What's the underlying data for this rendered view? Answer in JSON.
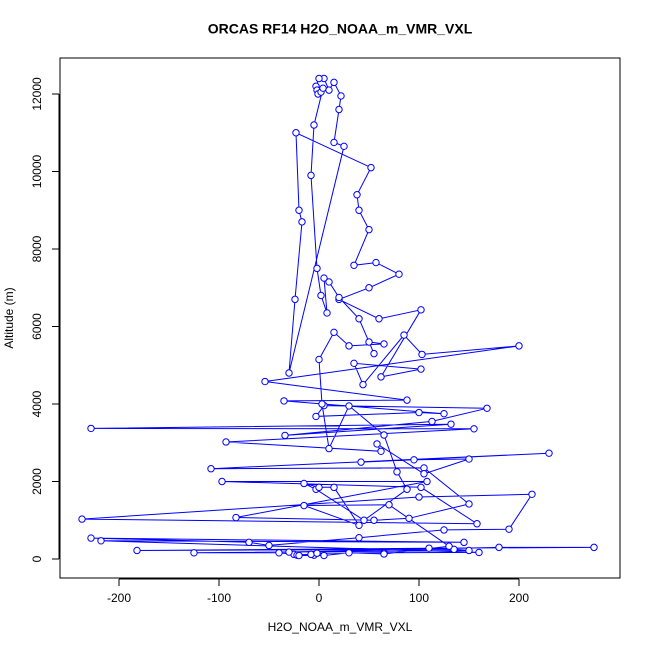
{
  "chart_data": {
    "type": "line",
    "title": "ORCAS RF14 H2O_NOAA_m_VMR_VXL",
    "x_label": "H2O_NOAA_m_VMR_VXL",
    "y_label": "Altitude (m)",
    "color": "#0000ff",
    "markers": true,
    "x": [
      -5,
      -25,
      -40,
      -125,
      150,
      135,
      -182,
      110,
      275,
      180,
      -30,
      -22,
      -8,
      -2,
      65,
      160,
      -218,
      145,
      -228,
      -70,
      -50,
      40,
      125,
      190,
      213,
      100,
      -237,
      158,
      102,
      -97,
      108,
      -83,
      55,
      90,
      150,
      105,
      -108,
      230,
      42,
      95,
      150,
      105,
      58,
      62,
      -93,
      155,
      -228,
      132,
      -34,
      113,
      168,
      5,
      -3,
      100,
      125,
      -35,
      88,
      -54,
      200,
      103,
      85,
      44,
      35,
      102,
      62,
      102,
      60,
      20,
      50,
      80,
      57,
      35,
      50,
      40,
      38,
      52,
      -23,
      -20,
      -17,
      -24,
      -30,
      25,
      15,
      20,
      22,
      15,
      10,
      5,
      0,
      -3,
      -2,
      -1,
      2,
      4,
      -5,
      -8,
      -2,
      2,
      8,
      5,
      10,
      20,
      40,
      55,
      50,
      65,
      30,
      15,
      0,
      3,
      10,
      30,
      65,
      78,
      88,
      45,
      -3,
      -15,
      0,
      15,
      40,
      -15,
      70,
      130,
      65,
      30,
      5,
      -20
    ],
    "values": [
      100,
      120,
      160,
      160,
      220,
      250,
      220,
      280,
      300,
      300,
      180,
      100,
      120,
      150,
      160,
      170,
      470,
      430,
      540,
      430,
      350,
      550,
      750,
      770,
      1670,
      1600,
      1030,
      910,
      1850,
      2000,
      2000,
      1070,
      1000,
      1050,
      1420,
      2350,
      2330,
      2730,
      2500,
      2560,
      2580,
      2200,
      2970,
      2780,
      3020,
      3360,
      3370,
      3480,
      3190,
      3550,
      3890,
      3960,
      3680,
      3780,
      3750,
      4080,
      4100,
      4580,
      5500,
      5280,
      5780,
      4500,
      5050,
      4900,
      4700,
      6430,
      6200,
      6700,
      7000,
      7350,
      7650,
      7580,
      8500,
      9000,
      9400,
      10100,
      11000,
      9000,
      8700,
      6700,
      4800,
      10650,
      10750,
      11600,
      11950,
      12300,
      12100,
      12400,
      12400,
      12200,
      12100,
      12000,
      12050,
      12150,
      11200,
      9900,
      7500,
      6800,
      6350,
      7250,
      7150,
      6750,
      6200,
      5300,
      5600,
      5550,
      5500,
      5850,
      5150,
      4000,
      2850,
      3950,
      3200,
      2250,
      1800,
      1000,
      1800,
      1950,
      1850,
      1850,
      870,
      1380,
      1400,
      330,
      130,
      160,
      90,
      90
    ],
    "xlim": [
      -259,
      301
    ],
    "ylim": [
      -490,
      12929
    ],
    "xticks": [
      -200,
      -100,
      0,
      100,
      200
    ],
    "yticks": [
      0,
      2000,
      4000,
      6000,
      8000,
      10000,
      12000
    ]
  }
}
